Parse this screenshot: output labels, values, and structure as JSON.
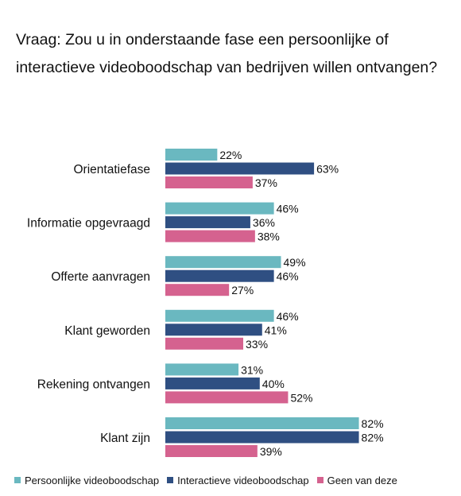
{
  "title": "Vraag: Zou u in onderstaande fase een persoonlijke of interactieve videoboodschap van bedrijven willen ontvangen?",
  "chart_data": {
    "type": "bar",
    "orientation": "horizontal",
    "title": "Vraag: Zou u in onderstaande fase een persoonlijke of interactieve videoboodschap van bedrijven willen ontvangen?",
    "categories": [
      "Orientatiefase",
      "Informatie opgevraagd",
      "Offerte aanvragen",
      "Klant geworden",
      "Rekening ontvangen",
      "Klant zijn"
    ],
    "series": [
      {
        "name": "Persoonlijke videoboodschap",
        "color": "#6ab8c0",
        "values": [
          22,
          46,
          49,
          46,
          31,
          82
        ],
        "labels": [
          "22%",
          "46%",
          "49%",
          "46%",
          "31%",
          "82%"
        ]
      },
      {
        "name": "Interactieve videoboodschap",
        "color": "#2f4f82",
        "values": [
          63,
          36,
          46,
          41,
          40,
          82
        ],
        "labels": [
          "63%",
          "36%",
          "46%",
          "41%",
          "40%",
          "82%"
        ]
      },
      {
        "name": "Geen van deze",
        "color": "#d5628f",
        "values": [
          37,
          38,
          27,
          33,
          52,
          39
        ],
        "labels": [
          "37%",
          "38%",
          "27%",
          "33%",
          "52%",
          "39%"
        ]
      }
    ],
    "xlim": [
      0,
      100
    ],
    "grid": false,
    "legend_position": "bottom"
  }
}
